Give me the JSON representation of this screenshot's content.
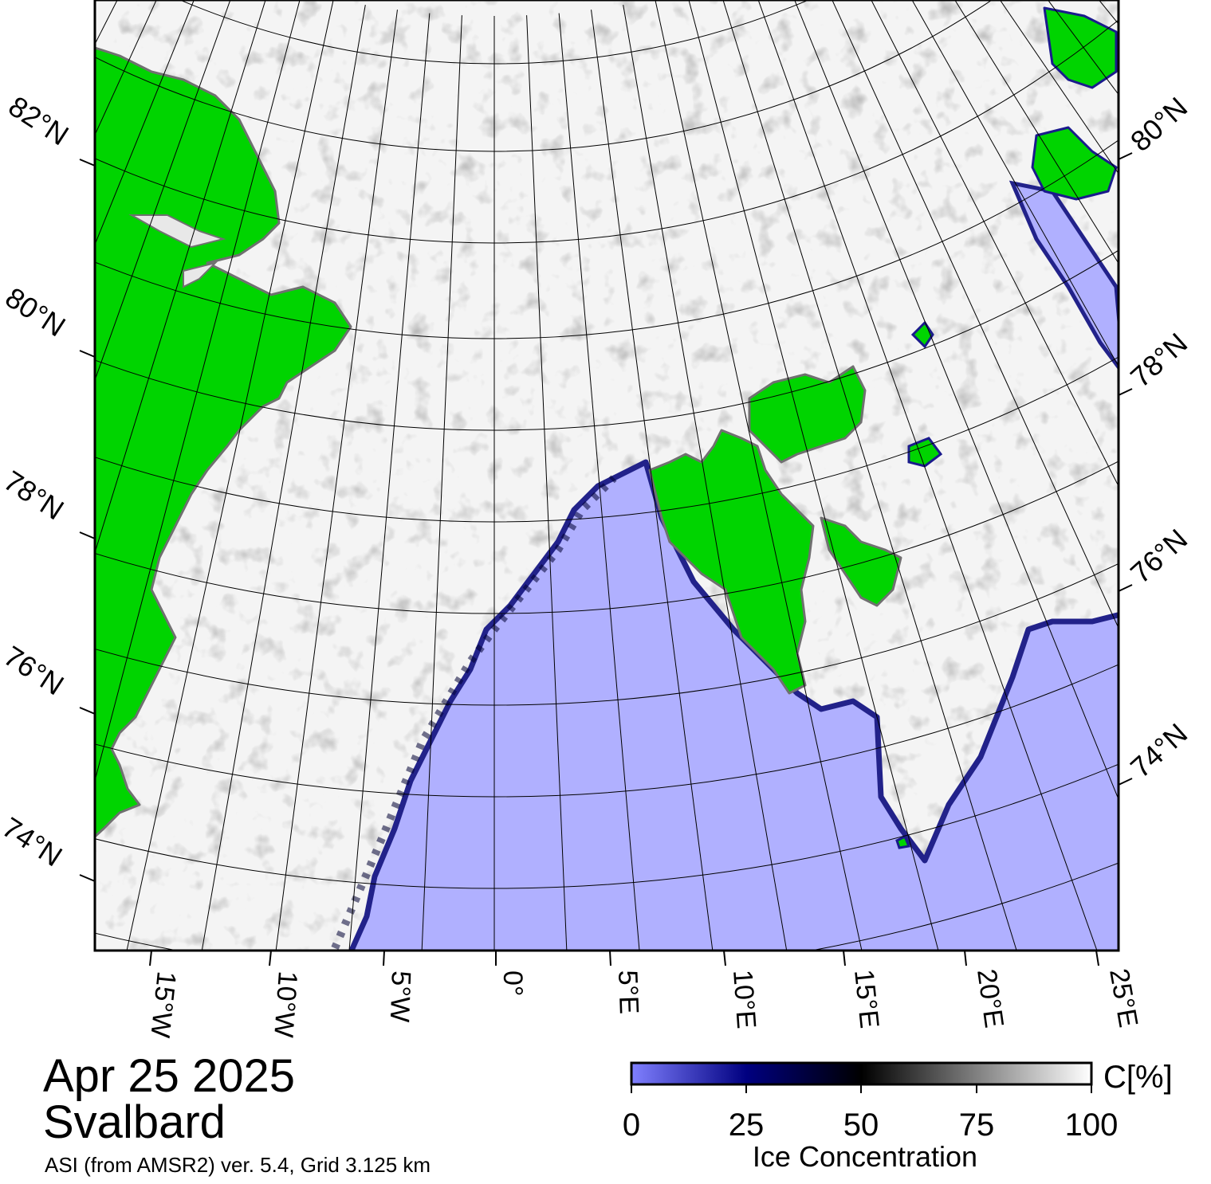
{
  "map": {
    "date": "Apr 25 2025",
    "region": "Svalbard",
    "product": "ASI (from AMSR2) ver. 5.4,  Grid 3.125 km",
    "colors": {
      "land": "#00d400",
      "open_water": "#b0b0ff",
      "ice_edge": "#1a1a8c",
      "land_ice_border": "#808080",
      "graticule": "#000000"
    },
    "lat_labels_left": [
      "82°N",
      "80°N",
      "78°N",
      "76°N",
      "74°N"
    ],
    "lat_labels_right": [
      "80°N",
      "78°N",
      "76°N",
      "74°N"
    ],
    "lon_labels_bottom": [
      "15°W",
      "10°W",
      "5°W",
      "0°",
      "5°E",
      "10°E",
      "15°E",
      "20°E",
      "25°E"
    ]
  },
  "colorbar": {
    "unit": "C[%]",
    "title": "Ice Concentration",
    "ticks": [
      "0",
      "25",
      "50",
      "75",
      "100"
    ],
    "stops": [
      "#8080ff",
      "#000080",
      "#000000",
      "#808080",
      "#ffffff"
    ]
  }
}
